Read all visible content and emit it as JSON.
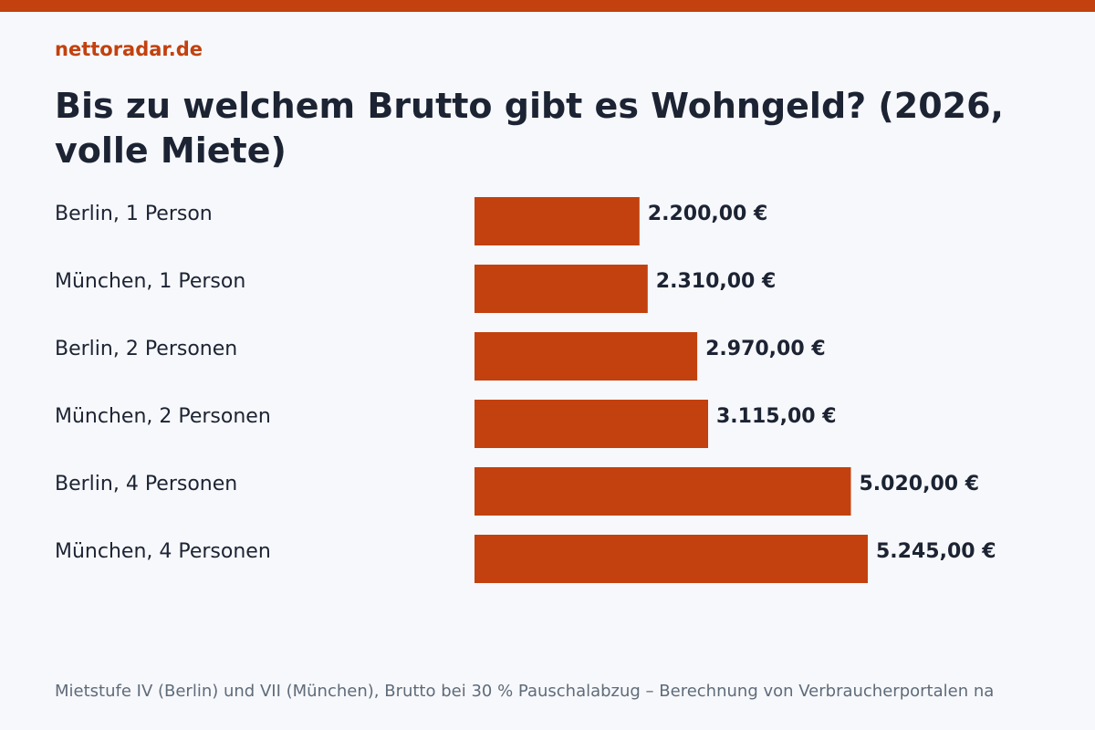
{
  "brand": "nettoradar.de",
  "title": "Bis zu welchem Brutto gibt es Wohngeld? (2026, volle Miete)",
  "footnote": "Mietstufe IV (Berlin) und VII (München), Brutto bei 30 % Pauschalabzug – Berechnung von Verbraucherportalen na",
  "colors": {
    "accent": "#c2410e",
    "text": "#1c2333",
    "muted": "#5f6b7a",
    "background": "#f7f8fb"
  },
  "chart_data": {
    "type": "bar",
    "orientation": "horizontal",
    "title": "Bis zu welchem Brutto gibt es Wohngeld? (2026, volle Miete)",
    "categories": [
      "Berlin, 1 Person",
      "München, 1 Person",
      "Berlin, 2 Personen",
      "München, 2 Personen",
      "Berlin, 4 Personen",
      "München, 4 Personen"
    ],
    "values": [
      2200,
      2310,
      2970,
      3115,
      5020,
      5245
    ],
    "value_labels": [
      "2.200,00 €",
      "2.310,00 €",
      "2.970,00 €",
      "3.115,00 €",
      "5.020,00 €",
      "5.245,00 €"
    ],
    "xlabel": "",
    "ylabel": "",
    "grid": false,
    "legend": "none"
  }
}
